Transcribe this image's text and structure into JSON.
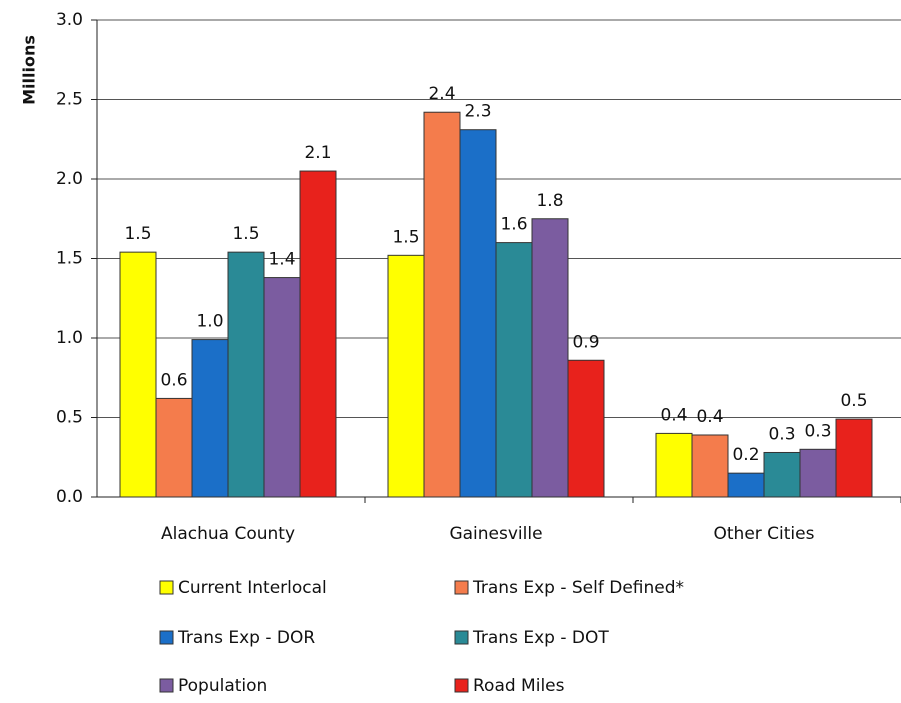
{
  "chart_data": {
    "type": "bar",
    "y_label": "Millions",
    "categories": [
      "Alachua County",
      "Gainesville",
      "Other Cities"
    ],
    "series": [
      {
        "name": "Current Interlocal",
        "color": "#ffff00",
        "values": [
          1.54,
          1.52,
          0.4
        ],
        "value_labels": [
          "1.5",
          "1.5",
          "0.4"
        ]
      },
      {
        "name": "Trans Exp - Self Defined*",
        "color": "#f47c4c",
        "values": [
          0.62,
          2.42,
          0.39
        ],
        "value_labels": [
          "0.6",
          "2.4",
          "0.4"
        ]
      },
      {
        "name": "Trans Exp - DOR",
        "color": "#1b6fc8",
        "values": [
          0.99,
          2.31,
          0.15
        ],
        "value_labels": [
          "1.0",
          "2.3",
          "0.2"
        ]
      },
      {
        "name": "Trans Exp - DOT",
        "color": "#2a8a96",
        "values": [
          1.54,
          1.6,
          0.28
        ],
        "value_labels": [
          "1.5",
          "1.6",
          "0.3"
        ]
      },
      {
        "name": "Population",
        "color": "#7b5ca0",
        "values": [
          1.38,
          1.75,
          0.3
        ],
        "value_labels": [
          "1.4",
          "1.8",
          "0.3"
        ]
      },
      {
        "name": "Road Miles",
        "color": "#e8221c",
        "values": [
          2.05,
          0.86,
          0.49
        ],
        "value_labels": [
          "2.1",
          "0.9",
          "0.5"
        ]
      }
    ],
    "ylim": [
      0,
      3
    ],
    "yticks": [
      {
        "value": 0,
        "label": "0.0"
      },
      {
        "value": 0.5,
        "label": "0.5"
      },
      {
        "value": 1,
        "label": "1.0"
      },
      {
        "value": 1.5,
        "label": "1.5"
      },
      {
        "value": 2,
        "label": "2.0"
      },
      {
        "value": 2.5,
        "label": "2.5"
      },
      {
        "value": 3,
        "label": "3.0"
      }
    ],
    "grid": true,
    "legend": "bottom"
  }
}
